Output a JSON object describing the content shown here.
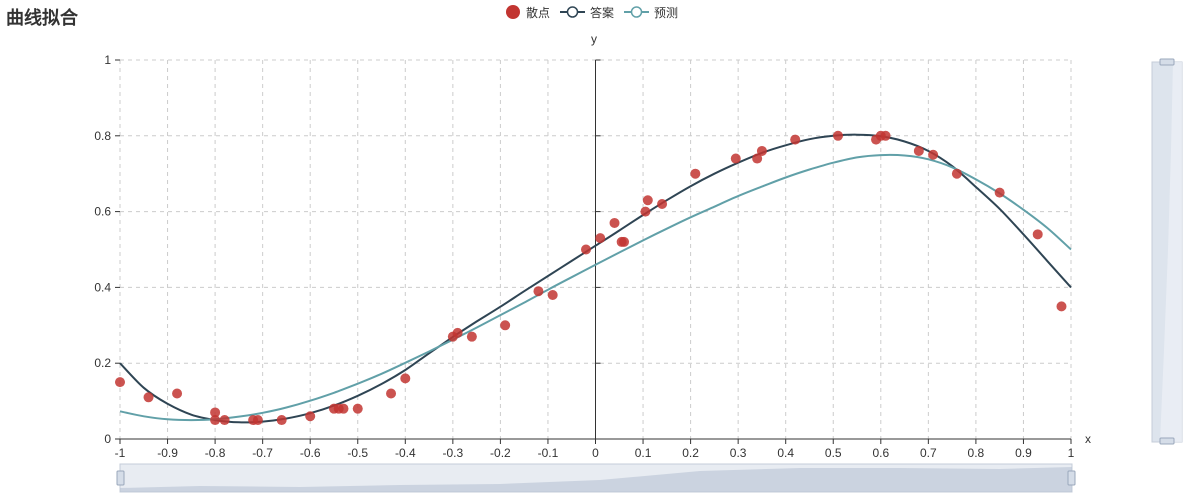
{
  "title": "曲线拟合",
  "colors": {
    "scatter": "#c23531",
    "answer": "#2f4554",
    "predict": "#61a0a8",
    "grid": "#cccccc",
    "axis": "#333333",
    "zoom_fill": "#d5dde8",
    "zoom_border": "#9aa8bb"
  },
  "legend": [
    {
      "label": "散点",
      "icon": "circle-filled-icon",
      "color": "#c23531"
    },
    {
      "label": "答案",
      "icon": "line-circle-icon",
      "color": "#2f4554"
    },
    {
      "label": "预测",
      "icon": "line-circle-icon",
      "color": "#61a0a8"
    }
  ],
  "chart_data": {
    "type": "scatter",
    "xlabel": "x",
    "ylabel": "y",
    "xlim": [
      -1,
      1
    ],
    "ylim": [
      0,
      1
    ],
    "x_ticks": [
      -1,
      -0.9,
      -0.8,
      -0.7,
      -0.6,
      -0.5,
      -0.4,
      -0.3,
      -0.2,
      -0.1,
      0,
      0.1,
      0.2,
      0.3,
      0.4,
      0.5,
      0.6,
      0.7,
      0.8,
      0.9,
      1
    ],
    "x_tick_labels": [
      "-1",
      "-0.9",
      "-0.8",
      "-0.7",
      "-0.6",
      "-0.5",
      "-0.4",
      "-0.3",
      "-0.2",
      "-0.1",
      "0",
      "0.1",
      "0.2",
      "0.3",
      "0.4",
      "0.5",
      "0.6",
      "0.7",
      "0.8",
      "0.9",
      "1"
    ],
    "y_ticks": [
      0,
      0.2,
      0.4,
      0.6,
      0.8,
      1
    ],
    "y_tick_labels": [
      "0",
      "0.2",
      "0.4",
      "0.6",
      "0.8",
      "1"
    ],
    "grid": true,
    "legend_position": "top-center",
    "series": [
      {
        "name": "散点",
        "type": "scatter",
        "points": [
          [
            -1.0,
            0.15
          ],
          [
            -0.94,
            0.11
          ],
          [
            -0.88,
            0.12
          ],
          [
            -0.8,
            0.07
          ],
          [
            -0.8,
            0.05
          ],
          [
            -0.78,
            0.05
          ],
          [
            -0.72,
            0.05
          ],
          [
            -0.71,
            0.05
          ],
          [
            -0.66,
            0.05
          ],
          [
            -0.6,
            0.06
          ],
          [
            -0.55,
            0.08
          ],
          [
            -0.54,
            0.08
          ],
          [
            -0.53,
            0.08
          ],
          [
            -0.5,
            0.08
          ],
          [
            -0.43,
            0.12
          ],
          [
            -0.4,
            0.16
          ],
          [
            -0.3,
            0.27
          ],
          [
            -0.29,
            0.28
          ],
          [
            -0.26,
            0.27
          ],
          [
            -0.19,
            0.3
          ],
          [
            -0.12,
            0.39
          ],
          [
            -0.09,
            0.38
          ],
          [
            -0.02,
            0.5
          ],
          [
            0.01,
            0.53
          ],
          [
            0.04,
            0.57
          ],
          [
            0.055,
            0.52
          ],
          [
            0.06,
            0.52
          ],
          [
            0.105,
            0.6
          ],
          [
            0.11,
            0.63
          ],
          [
            0.14,
            0.62
          ],
          [
            0.21,
            0.7
          ],
          [
            0.295,
            0.74
          ],
          [
            0.34,
            0.74
          ],
          [
            0.35,
            0.76
          ],
          [
            0.42,
            0.79
          ],
          [
            0.51,
            0.8
          ],
          [
            0.59,
            0.79
          ],
          [
            0.6,
            0.8
          ],
          [
            0.61,
            0.8
          ],
          [
            0.68,
            0.76
          ],
          [
            0.71,
            0.75
          ],
          [
            0.76,
            0.7
          ],
          [
            0.85,
            0.65
          ],
          [
            0.93,
            0.54
          ],
          [
            0.98,
            0.35
          ]
        ]
      },
      {
        "name": "答案",
        "type": "line",
        "x": [
          -1,
          -0.95,
          -0.9,
          -0.85,
          -0.8,
          -0.75,
          -0.7,
          -0.65,
          -0.6,
          -0.55,
          -0.5,
          -0.45,
          -0.4,
          -0.35,
          -0.3,
          -0.25,
          -0.2,
          -0.15,
          -0.1,
          -0.05,
          0,
          0.05,
          0.1,
          0.15,
          0.2,
          0.25,
          0.3,
          0.35,
          0.4,
          0.45,
          0.5,
          0.55,
          0.6,
          0.65,
          0.7,
          0.75,
          0.8,
          0.85,
          0.9,
          0.95,
          1
        ],
        "y": [
          0.2,
          0.135,
          0.093,
          0.064,
          0.05,
          0.044,
          0.046,
          0.054,
          0.068,
          0.088,
          0.114,
          0.145,
          0.182,
          0.226,
          0.269,
          0.31,
          0.349,
          0.39,
          0.43,
          0.47,
          0.51,
          0.55,
          0.591,
          0.63,
          0.667,
          0.7,
          0.729,
          0.755,
          0.775,
          0.791,
          0.8,
          0.803,
          0.799,
          0.785,
          0.76,
          0.72,
          0.665,
          0.607,
          0.54,
          0.47,
          0.4
        ]
      },
      {
        "name": "预测",
        "type": "line",
        "x": [
          -1,
          -0.95,
          -0.9,
          -0.85,
          -0.8,
          -0.75,
          -0.7,
          -0.65,
          -0.6,
          -0.55,
          -0.5,
          -0.45,
          -0.4,
          -0.35,
          -0.3,
          -0.25,
          -0.2,
          -0.15,
          -0.1,
          -0.05,
          0,
          0.05,
          0.1,
          0.15,
          0.2,
          0.25,
          0.3,
          0.35,
          0.4,
          0.45,
          0.5,
          0.55,
          0.6,
          0.65,
          0.7,
          0.75,
          0.8,
          0.85,
          0.9,
          0.95,
          1
        ],
        "y": [
          0.073,
          0.06,
          0.052,
          0.05,
          0.052,
          0.059,
          0.069,
          0.083,
          0.101,
          0.122,
          0.146,
          0.172,
          0.201,
          0.231,
          0.262,
          0.294,
          0.327,
          0.36,
          0.394,
          0.427,
          0.46,
          0.492,
          0.524,
          0.555,
          0.585,
          0.613,
          0.641,
          0.666,
          0.69,
          0.711,
          0.729,
          0.743,
          0.749,
          0.748,
          0.738,
          0.717,
          0.685,
          0.648,
          0.605,
          0.557,
          0.5
        ]
      }
    ]
  }
}
